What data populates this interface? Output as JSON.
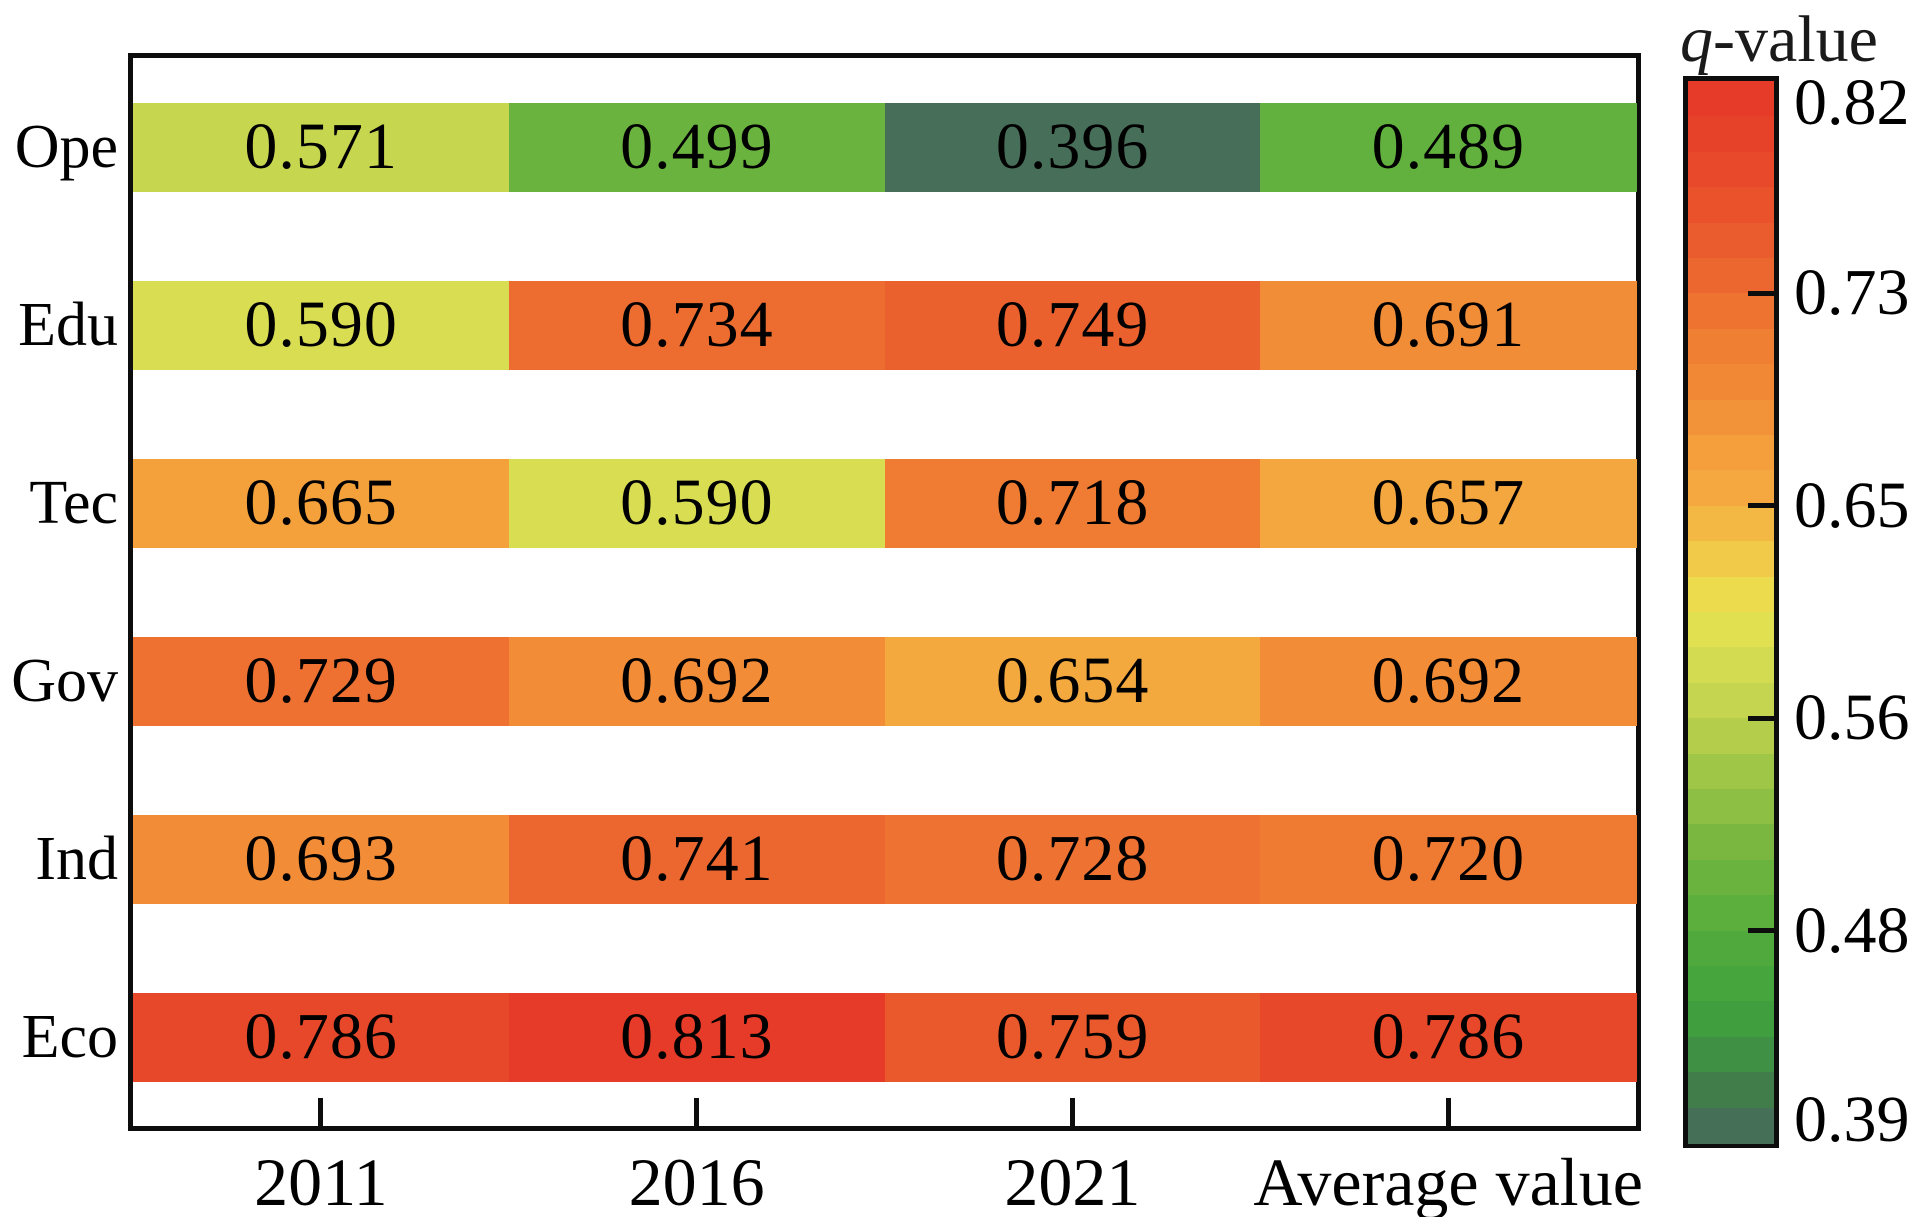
{
  "figure": {
    "colorbar_title_q": "q",
    "colorbar_title_rest": "-value"
  },
  "chart_data": {
    "type": "heatmap",
    "title": "",
    "rows": [
      "Ope",
      "Edu",
      "Tec",
      "Gov",
      "Ind",
      "Eco"
    ],
    "columns": [
      "2011",
      "2016",
      "2021",
      "Average value"
    ],
    "series": [
      {
        "name": "Ope",
        "values": [
          0.571,
          0.499,
          0.396,
          0.489
        ]
      },
      {
        "name": "Edu",
        "values": [
          0.59,
          0.734,
          0.749,
          0.691
        ]
      },
      {
        "name": "Tec",
        "values": [
          0.665,
          0.59,
          0.718,
          0.657
        ]
      },
      {
        "name": "Gov",
        "values": [
          0.729,
          0.692,
          0.654,
          0.692
        ]
      },
      {
        "name": "Ind",
        "values": [
          0.693,
          0.741,
          0.728,
          0.72
        ]
      },
      {
        "name": "Eco",
        "values": [
          0.786,
          0.813,
          0.759,
          0.786
        ]
      }
    ],
    "value_format_decimals": 3,
    "colorbar": {
      "title": "q-value",
      "min": 0.39,
      "max": 0.82,
      "levels": 30,
      "tick_labels": [
        "0.82",
        "0.73",
        "0.65",
        "0.56",
        "0.48",
        "0.39"
      ],
      "tick_values": [
        0.82,
        0.73,
        0.65,
        0.56,
        0.48,
        0.39
      ],
      "position": "right"
    },
    "layout_hints": {
      "grid": false,
      "row_band_fraction": 0.5,
      "x_axis_ticks": "inside-bottom"
    },
    "colormap_stops": [
      [
        0.39,
        "#4a6a5e"
      ],
      [
        0.404,
        "#427450"
      ],
      [
        0.419,
        "#3f8646"
      ],
      [
        0.433,
        "#3e9941"
      ],
      [
        0.447,
        "#44a23e"
      ],
      [
        0.462,
        "#4aa73c"
      ],
      [
        0.476,
        "#55ac3c"
      ],
      [
        0.49,
        "#63b13e"
      ],
      [
        0.505,
        "#70b440"
      ],
      [
        0.519,
        "#84bb43"
      ],
      [
        0.533,
        "#96c246"
      ],
      [
        0.548,
        "#aaca49"
      ],
      [
        0.562,
        "#bed24d"
      ],
      [
        0.576,
        "#ccd850"
      ],
      [
        0.59,
        "#d9dd52"
      ],
      [
        0.605,
        "#e9e24e"
      ],
      [
        0.619,
        "#eed44a"
      ],
      [
        0.634,
        "#f2c146"
      ],
      [
        0.648,
        "#f4ad41"
      ],
      [
        0.662,
        "#f4a33d"
      ],
      [
        0.677,
        "#f3983a"
      ],
      [
        0.691,
        "#f28d37"
      ],
      [
        0.705,
        "#f08434"
      ],
      [
        0.719,
        "#ef7b32"
      ],
      [
        0.734,
        "#ed6c30"
      ],
      [
        0.748,
        "#eb622e"
      ],
      [
        0.762,
        "#ea572c"
      ],
      [
        0.777,
        "#e84d2b"
      ],
      [
        0.791,
        "#e7452a"
      ],
      [
        0.805,
        "#e63e29"
      ],
      [
        0.82,
        "#e53928"
      ]
    ]
  }
}
